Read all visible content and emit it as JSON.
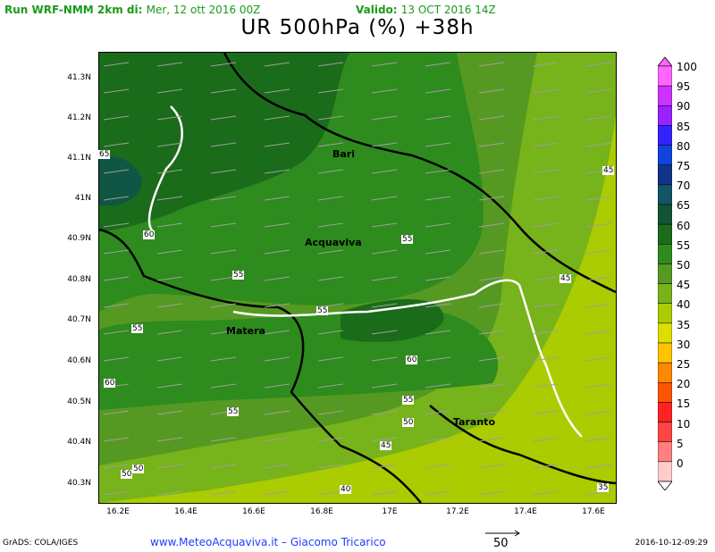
{
  "header": {
    "run_label": "Run WRF-NMM 2km di:",
    "run_date": "Mer, 12 ott 2016 00Z",
    "valid_label": "Valido:",
    "valid_date": "13 OCT 2016 14Z",
    "title": "UR 500hPa (%) +38h"
  },
  "axes": {
    "y_ticks": [
      "41.3N",
      "41.2N",
      "41.1N",
      "41N",
      "40.9N",
      "40.8N",
      "40.7N",
      "40.6N",
      "40.5N",
      "40.4N",
      "40.3N"
    ],
    "x_ticks": [
      "16.2E",
      "16.4E",
      "16.6E",
      "16.8E",
      "17E",
      "17.2E",
      "17.4E",
      "17.6E"
    ]
  },
  "cities": {
    "bari": "Bari",
    "acquaviva": "Acquaviva",
    "matera": "Matera",
    "taranto": "Taranto"
  },
  "contour_labels": {
    "c65": "65",
    "c60a": "60",
    "c60b": "60",
    "c60c": "60",
    "c55a": "55",
    "c55b": "55",
    "c55c": "55",
    "c55d": "55",
    "c55e": "55",
    "c55f": "55",
    "c50a": "50",
    "c50b": "50",
    "c50c": "50",
    "c45a": "45",
    "c45b": "45",
    "c45c": "45",
    "c40": "40",
    "c35": "35"
  },
  "colorbar": {
    "levels": [
      "100",
      "95",
      "90",
      "85",
      "80",
      "75",
      "70",
      "65",
      "60",
      "55",
      "50",
      "45",
      "40",
      "35",
      "30",
      "25",
      "20",
      "15",
      "10",
      "5",
      "0"
    ],
    "colors": [
      "#ff66ff",
      "#cc33ff",
      "#9922ff",
      "#3322ff",
      "#1144dd",
      "#113388",
      "#115566",
      "#115533",
      "#1a6b1a",
      "#2e8b1e",
      "#559922",
      "#77b31a",
      "#aacc00",
      "#dddd00",
      "#ffc400",
      "#ff8800",
      "#ff5500",
      "#ff2222",
      "#ff4444",
      "#ff7f7f",
      "#ffcccc"
    ]
  },
  "footer": {
    "grads": "GrADS: COLA/IGES",
    "credit": "www.MeteoAcquaviva.it  –  Giacomo Tricarico",
    "vector_ref": "50",
    "timestamp": "2016-10-12-09:29"
  }
}
